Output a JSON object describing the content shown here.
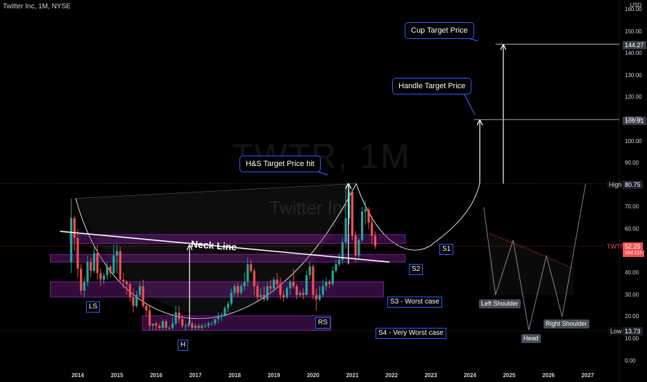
{
  "header": {
    "symbol_line": "Twitter Inc, 1M, NYSE",
    "currency": "USD"
  },
  "watermark": {
    "ticker": "TWTR, 1M",
    "name": "Twitter Inc"
  },
  "colors": {
    "up": "#26a69a",
    "down": "#ef5350",
    "zone": "#8e24aa",
    "callout_border": "#2962ff",
    "last_price_line": "#c62828"
  },
  "chart_data": {
    "type": "candlestick",
    "symbol": "TWTR",
    "interval": "1M",
    "exchange": "NYSE",
    "ylim": [
      0,
      165
    ],
    "y_ticks": [
      0,
      10,
      20,
      30,
      40,
      60,
      70,
      90,
      100,
      110,
      120,
      130,
      140,
      150,
      160
    ],
    "y_tick_labels": [
      "0.00",
      "10.00",
      "20.00",
      "30.00",
      "40.00",
      "60.00",
      "70.00",
      "90.00",
      "100.00",
      "110.00",
      "120.00",
      "130.00",
      "140.00",
      "150.00",
      "160.00"
    ],
    "x_axis_years": [
      "2014",
      "2015",
      "2016",
      "2017",
      "2018",
      "2019",
      "2020",
      "2021",
      "2022",
      "2023",
      "2024",
      "2025",
      "2026",
      "2027"
    ],
    "x_axis_year_values": [
      2014,
      2015,
      2016,
      2017,
      2018,
      2019,
      2020,
      2021,
      2022,
      2023,
      2024,
      2025,
      2026,
      2027
    ],
    "candle_start": 2013.833,
    "ohlc": [
      [
        45,
        74,
        40,
        65
      ],
      [
        65,
        66,
        50,
        56
      ],
      [
        56,
        60,
        38,
        42
      ],
      [
        42,
        44,
        30,
        32
      ],
      [
        32,
        38,
        29,
        36
      ],
      [
        36,
        48,
        34,
        45
      ],
      [
        45,
        47,
        38,
        41
      ],
      [
        41,
        52,
        40,
        49
      ],
      [
        49,
        53,
        37,
        40
      ],
      [
        40,
        42,
        34,
        37
      ],
      [
        37,
        40,
        35,
        39
      ],
      [
        39,
        45,
        37,
        43
      ],
      [
        43,
        44,
        38,
        40
      ],
      [
        40,
        53,
        39,
        48
      ],
      [
        48,
        53,
        40,
        50
      ],
      [
        50,
        52,
        36,
        37
      ],
      [
        37,
        40,
        33,
        36
      ],
      [
        36,
        37,
        30,
        35
      ],
      [
        35,
        36,
        27,
        29
      ],
      [
        29,
        33,
        22,
        25
      ],
      [
        25,
        32,
        24,
        30
      ],
      [
        30,
        36,
        29,
        34
      ],
      [
        34,
        37,
        24,
        25
      ],
      [
        25,
        26,
        20,
        23
      ],
      [
        23,
        25,
        14,
        16
      ],
      [
        16,
        17,
        14,
        17
      ],
      [
        17,
        18,
        14,
        16
      ],
      [
        16,
        17,
        14,
        15
      ],
      [
        15,
        19,
        14,
        18
      ],
      [
        18,
        19,
        14,
        15
      ],
      [
        15,
        16,
        14,
        15
      ],
      [
        15,
        20,
        14,
        17
      ],
      [
        17,
        25,
        16,
        22
      ],
      [
        22,
        25,
        17,
        19
      ],
      [
        19,
        21,
        15,
        16
      ],
      [
        16,
        17,
        14,
        16
      ],
      [
        16,
        18,
        15,
        17
      ],
      [
        17,
        18,
        14,
        15
      ],
      [
        15,
        17,
        14,
        16
      ],
      [
        16,
        17,
        14,
        15
      ],
      [
        15,
        17,
        14,
        16
      ],
      [
        16,
        17,
        15,
        16
      ],
      [
        16,
        18,
        15,
        17
      ],
      [
        17,
        18,
        16,
        17
      ],
      [
        17,
        19,
        16,
        19
      ],
      [
        19,
        22,
        17,
        20
      ],
      [
        20,
        22,
        18,
        21
      ],
      [
        21,
        25,
        20,
        24
      ],
      [
        24,
        27,
        22,
        26
      ],
      [
        26,
        33,
        25,
        31
      ],
      [
        31,
        35,
        29,
        34
      ],
      [
        34,
        36,
        29,
        31
      ],
      [
        31,
        35,
        30,
        34
      ],
      [
        34,
        40,
        32,
        36
      ],
      [
        36,
        47,
        34,
        44
      ],
      [
        44,
        46,
        40,
        41
      ],
      [
        41,
        42,
        30,
        34
      ],
      [
        34,
        36,
        27,
        29
      ],
      [
        29,
        33,
        28,
        30
      ],
      [
        30,
        34,
        27,
        28
      ],
      [
        28,
        36,
        27,
        34
      ],
      [
        34,
        37,
        31,
        33
      ],
      [
        33,
        38,
        32,
        37
      ],
      [
        37,
        40,
        33,
        35
      ],
      [
        35,
        38,
        28,
        30
      ],
      [
        30,
        32,
        27,
        29
      ],
      [
        29,
        34,
        28,
        33
      ],
      [
        33,
        37,
        30,
        36
      ],
      [
        36,
        42,
        33,
        34
      ],
      [
        34,
        35,
        28,
        30
      ],
      [
        30,
        32,
        29,
        31
      ],
      [
        31,
        33,
        28,
        30
      ],
      [
        30,
        41,
        30,
        39
      ],
      [
        39,
        45,
        37,
        43
      ],
      [
        43,
        44,
        28,
        30
      ],
      [
        30,
        33,
        23,
        28
      ],
      [
        28,
        34,
        27,
        30
      ],
      [
        30,
        37,
        29,
        34
      ],
      [
        34,
        38,
        32,
        36
      ],
      [
        36,
        37,
        33,
        35
      ],
      [
        35,
        43,
        34,
        41
      ],
      [
        41,
        46,
        40,
        44
      ],
      [
        44,
        49,
        43,
        46
      ],
      [
        46,
        56,
        44,
        54
      ],
      [
        54,
        80,
        51,
        65
      ],
      [
        65,
        80,
        62,
        77
      ],
      [
        77,
        78,
        55,
        57
      ],
      [
        57,
        59,
        45,
        48
      ],
      [
        48,
        56,
        46,
        55
      ],
      [
        55,
        70,
        54,
        68
      ],
      [
        68,
        73,
        62,
        69
      ],
      [
        69,
        70,
        60,
        63
      ],
      [
        63,
        66,
        53,
        57
      ],
      [
        57,
        59,
        51,
        52.25
      ]
    ],
    "levels": {
      "high": 80.75,
      "low": 13.73,
      "last": 52.25,
      "handle_target": 109.91,
      "cup_target": 144.27
    },
    "support_zones": [
      {
        "label": "S1",
        "from": 2013.8,
        "to": 2022.35,
        "low": 53.5,
        "high": 57.5
      },
      {
        "label": "S2",
        "from": 2013.3,
        "to": 2022.35,
        "low": 45.0,
        "high": 48.5
      },
      {
        "label": "S3 - Worst case",
        "from": 2013.3,
        "to": 2021.8,
        "low": 29.0,
        "high": 36.0
      },
      {
        "label": "S4 - Very Worst case",
        "from": 2015.65,
        "to": 2020.45,
        "low": 13.9,
        "high": 20.5
      }
    ],
    "neck_line": {
      "x": [
        2013.55,
        2021.95
      ],
      "y": [
        59,
        45
      ]
    },
    "markers": [
      {
        "label": "LS",
        "x": 2014.35,
        "y": 27
      },
      {
        "label": "H",
        "x": 2016.65,
        "y": 8
      },
      {
        "label": "RS",
        "x": 2020.2,
        "y": 19
      }
    ],
    "callouts": [
      "H&S Target Price hit",
      "Handle Target Price",
      "Cup Target Price"
    ],
    "projection_labels": [
      "Left Shoulder",
      "Head",
      "Right Shoulder"
    ],
    "price_tags": {
      "high_label": "High",
      "high_value": "80.75",
      "low_label": "Low",
      "low_value": "13.73",
      "last_label": "TWTR",
      "last_value": "52.25",
      "last_countdown": "16d 21h",
      "handle_value": "109.91",
      "cup_value": "144.27"
    }
  }
}
